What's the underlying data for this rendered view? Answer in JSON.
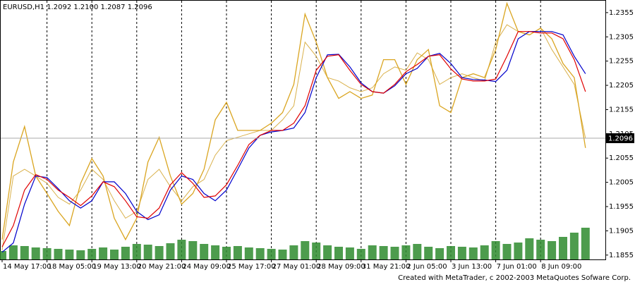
{
  "chart_data": {
    "type": "line",
    "title": "EURUSD,H1  1.2092 1.2100 1.2087 1.2096",
    "footer": "Created with MetaTrader, c 2002-2003 MetaQuotes Sofware Corp.",
    "categories": [
      "14 May 17:00",
      null,
      null,
      null,
      "18 May 05:00",
      null,
      null,
      null,
      "19 May 13:00",
      null,
      null,
      null,
      "20 May 21:00",
      null,
      null,
      null,
      "24 May 09:00",
      null,
      null,
      null,
      "25 May 17:00",
      null,
      null,
      null,
      "27 May 01:00",
      null,
      null,
      null,
      "28 May 09:00",
      null,
      null,
      null,
      "31 May 21:00",
      null,
      null,
      null,
      "2 Jun 05:00",
      null,
      null,
      null,
      "3 Jun 13:00",
      null,
      null,
      null,
      "7 Jun 01:00",
      null,
      null,
      null,
      "8 Jun 09:00",
      null,
      null,
      null,
      null
    ],
    "series": [
      {
        "color": "#d9b04a",
        "width": 1,
        "values": [
          1.1865,
          1.2018,
          1.2032,
          1.2018,
          1.2003,
          1.1974,
          1.196,
          1.1989,
          1.2032,
          1.2011,
          1.1967,
          1.1931,
          1.1945,
          1.2011,
          1.2032,
          1.1996,
          1.1967,
          1.1996,
          1.2011,
          1.2061,
          1.2091,
          1.2098,
          1.2105,
          1.2112,
          1.2112,
          1.2134,
          1.2163,
          1.2294,
          1.2265,
          1.2221,
          1.2214,
          1.22,
          1.2192,
          1.22,
          1.2229,
          1.2243,
          1.2236,
          1.2272,
          1.2258,
          1.2207,
          1.2221,
          1.2229,
          1.2221,
          1.2214,
          1.2294,
          1.233,
          1.2316,
          1.2309,
          1.2323,
          1.2279,
          1.2243,
          1.2207,
          1.2096
        ]
      },
      {
        "color": "#daa520",
        "width": 1.3,
        "values": [
          1.1887,
          1.2047,
          1.212,
          1.2018,
          1.1982,
          1.1945,
          1.1916,
          1.2003,
          1.2054,
          1.2018,
          1.1931,
          1.1887,
          1.1931,
          1.2047,
          1.2098,
          1.2018,
          1.196,
          1.1982,
          1.2032,
          1.2134,
          1.217,
          1.2112,
          1.2112,
          1.2112,
          1.2127,
          1.2149,
          1.2207,
          1.2352,
          1.2294,
          1.2221,
          1.2178,
          1.2192,
          1.2178,
          1.2185,
          1.2258,
          1.2258,
          1.2207,
          1.2258,
          1.2279,
          1.2163,
          1.2149,
          1.2221,
          1.2229,
          1.2221,
          1.2279,
          1.2374,
          1.2316,
          1.2309,
          1.2323,
          1.2301,
          1.225,
          1.2221,
          1.2076
        ]
      },
      {
        "color": "#0000cc",
        "width": 1.2,
        "values": [
          1.1861,
          1.188,
          1.196,
          1.2018,
          1.2015,
          1.1992,
          1.1967,
          1.1952,
          1.1967,
          1.2006,
          1.2006,
          1.1982,
          1.1945,
          1.1928,
          1.1938,
          1.1989,
          1.2018,
          1.2011,
          1.1982,
          1.1967,
          1.1989,
          1.2032,
          1.2076,
          1.2102,
          1.2109,
          1.2112,
          1.2117,
          1.2149,
          1.2221,
          1.2268,
          1.2269,
          1.2243,
          1.221,
          1.2192,
          1.2189,
          1.2204,
          1.2229,
          1.224,
          1.2265,
          1.2271,
          1.225,
          1.2221,
          1.2217,
          1.2216,
          1.2213,
          1.2236,
          1.2301,
          1.2316,
          1.2316,
          1.2316,
          1.2309,
          1.2265,
          1.2229
        ]
      },
      {
        "color": "#e00000",
        "width": 1.2,
        "values": [
          1.1872,
          1.1916,
          1.1989,
          1.2021,
          1.2011,
          1.1989,
          1.1974,
          1.1957,
          1.1977,
          1.2006,
          1.1996,
          1.1967,
          1.1934,
          1.1931,
          1.1952,
          1.2,
          1.2025,
          1.2003,
          1.1974,
          1.1977,
          1.2,
          1.204,
          1.2083,
          1.2102,
          1.2112,
          1.2112,
          1.2127,
          1.2163,
          1.2236,
          1.2265,
          1.2268,
          1.2236,
          1.2207,
          1.2192,
          1.2189,
          1.2207,
          1.2233,
          1.2248,
          1.2265,
          1.2268,
          1.2239,
          1.2218,
          1.2214,
          1.2214,
          1.2218,
          1.2265,
          1.2316,
          1.2316,
          1.2313,
          1.2313,
          1.2301,
          1.2258,
          1.2192
        ]
      }
    ],
    "volume": {
      "color": "#2e8b2e",
      "lim": [
        0,
        1000
      ],
      "values": [
        120,
        200,
        190,
        170,
        160,
        150,
        140,
        130,
        150,
        170,
        140,
        180,
        220,
        210,
        190,
        230,
        280,
        260,
        220,
        200,
        180,
        190,
        170,
        160,
        150,
        140,
        200,
        260,
        240,
        200,
        180,
        170,
        150,
        200,
        190,
        180,
        200,
        220,
        180,
        160,
        190,
        180,
        170,
        200,
        260,
        220,
        240,
        300,
        280,
        260,
        320,
        380,
        450
      ]
    },
    "last_price": 1.2096,
    "ylim": [
      1.1846,
      1.2381
    ],
    "yticks": [
      1.1855,
      1.1905,
      1.1955,
      1.2005,
      1.2055,
      1.2105,
      1.2155,
      1.2205,
      1.2255,
      1.2305,
      1.2355
    ],
    "grid": true
  }
}
